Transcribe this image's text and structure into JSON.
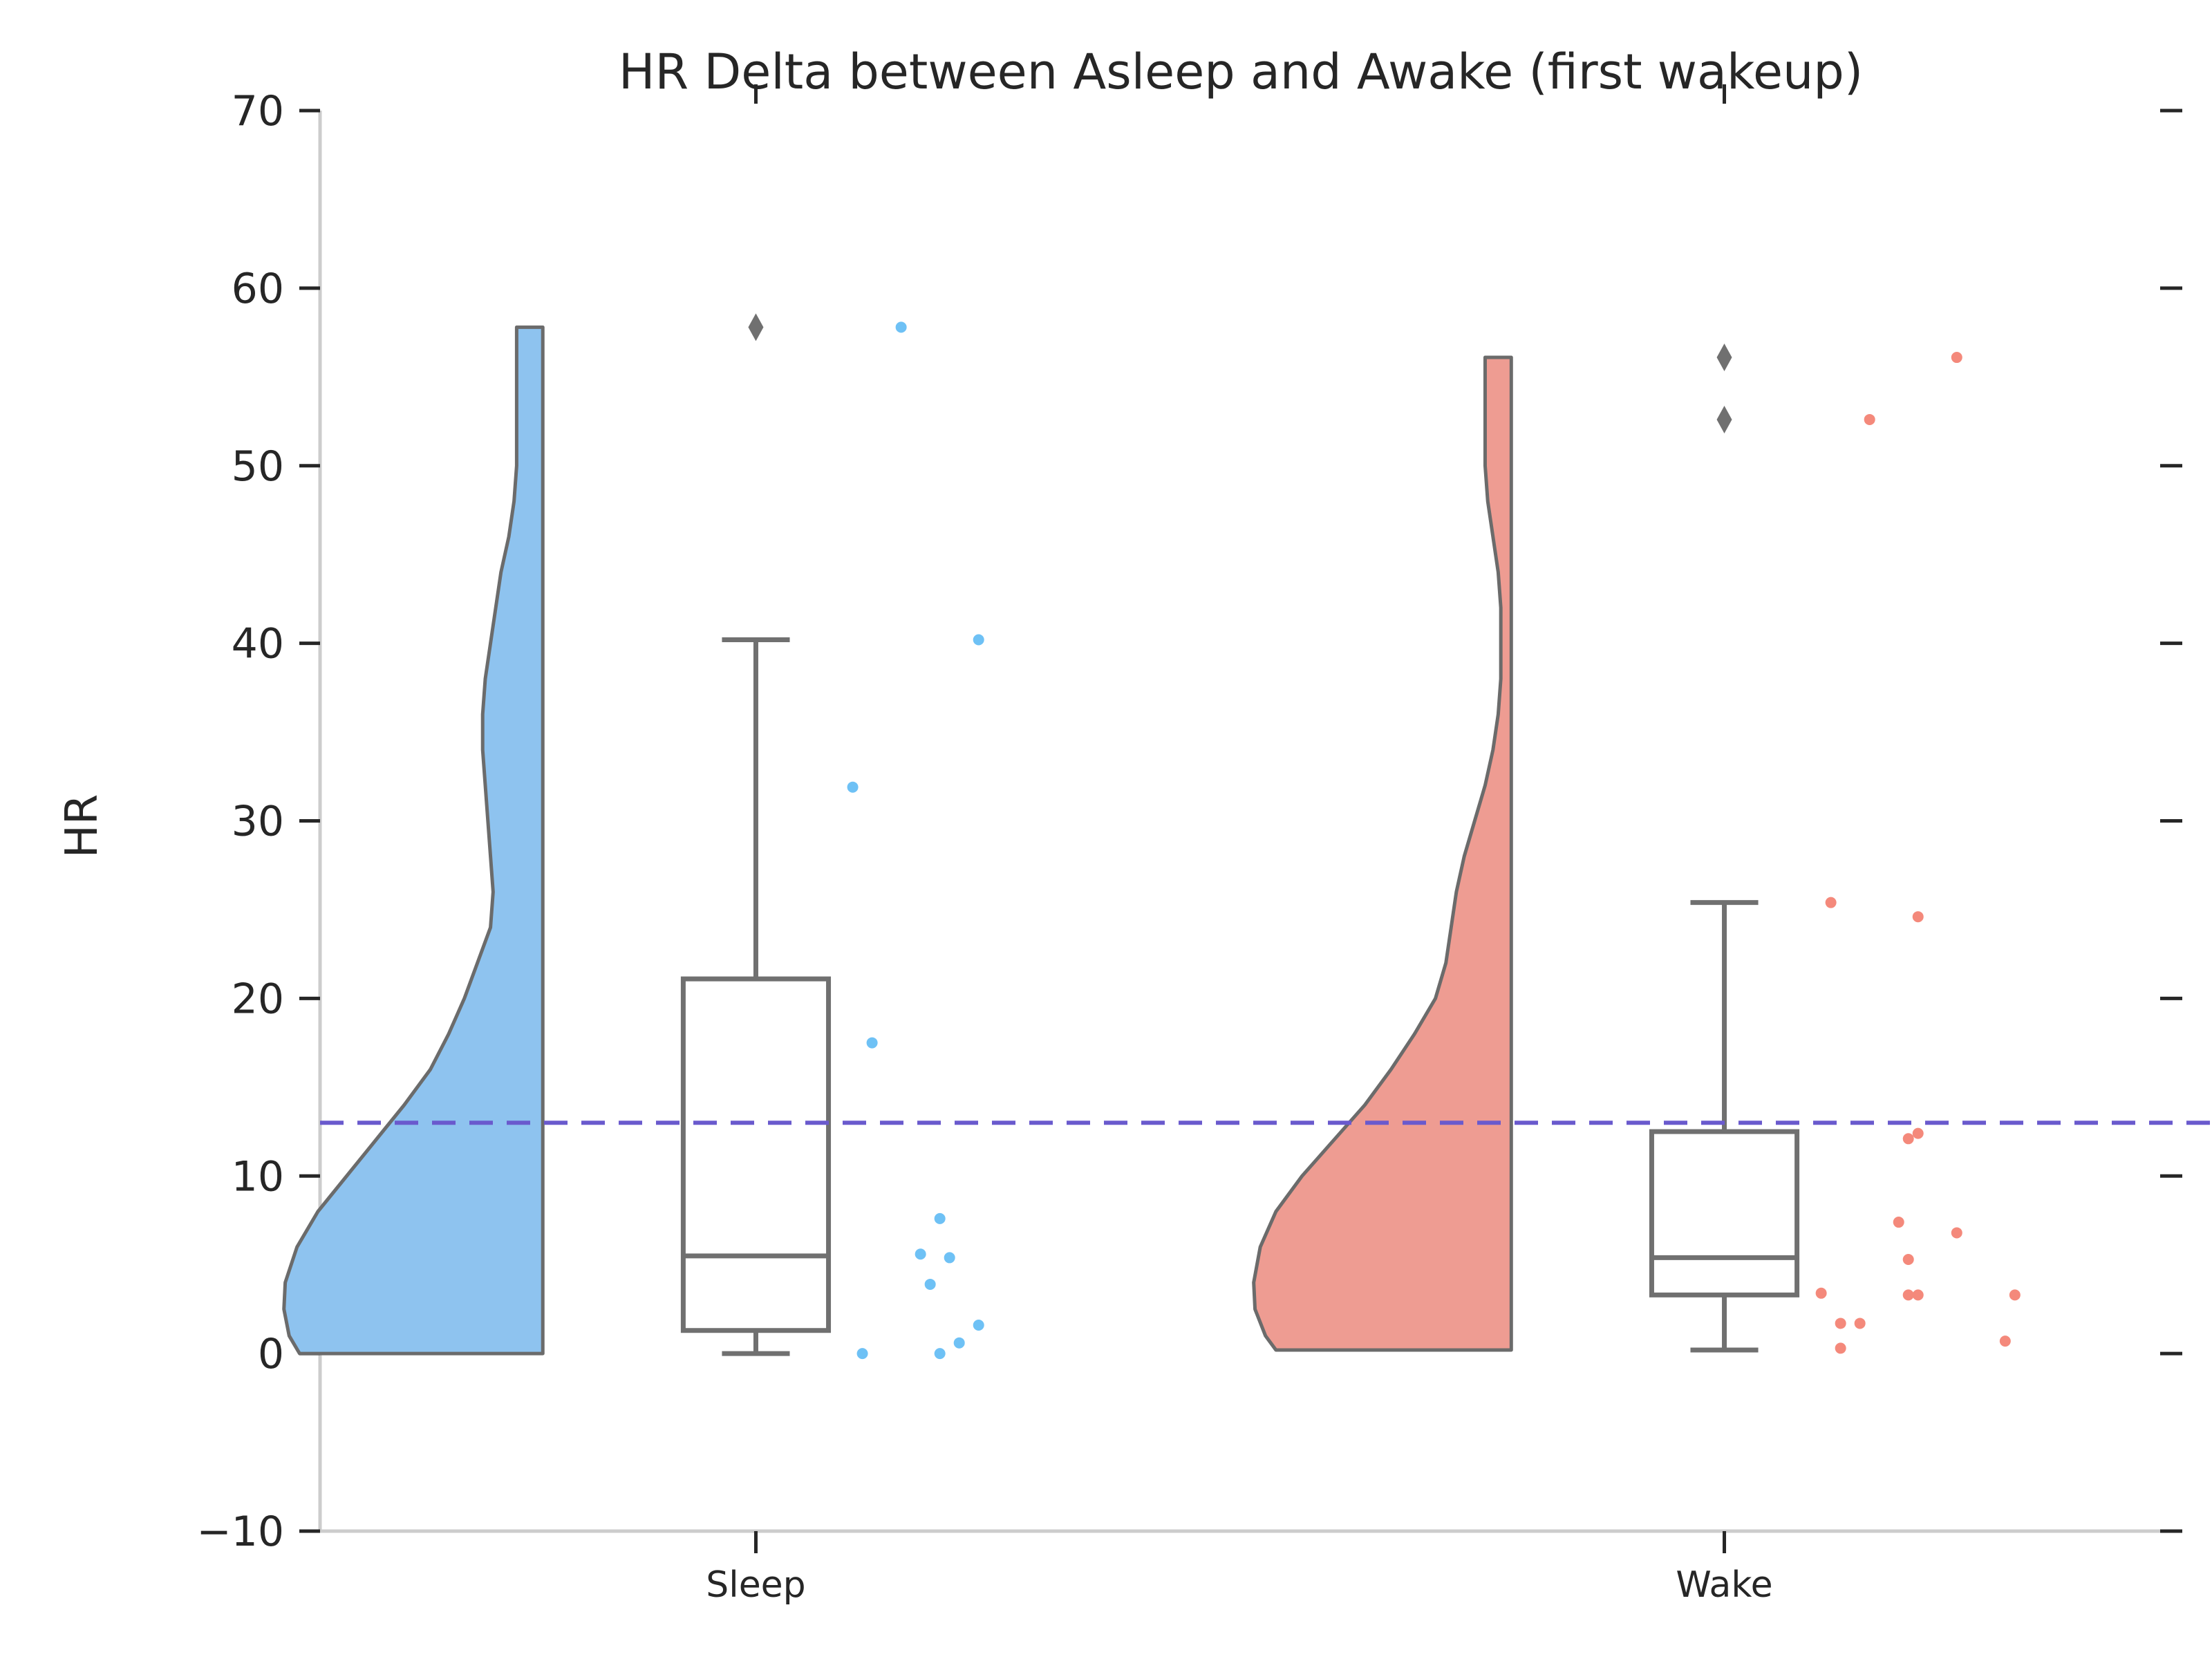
{
  "chart_data": {
    "type": "raincloud",
    "title": "HR Delta between Asleep and Awake (first wakeup)",
    "xlabel": "",
    "ylabel": "HR",
    "ylim": [
      -10,
      70
    ],
    "yticks": [
      -10,
      0,
      10,
      20,
      30,
      40,
      50,
      60,
      70
    ],
    "categories": [
      "Sleep",
      "Wake"
    ],
    "reference_line": {
      "y": 13,
      "color": "#6a5acd",
      "style": "dashed"
    },
    "grid": false,
    "groups": [
      {
        "category": "Sleep",
        "color": "#8ec3ef",
        "point_color": "#6ec1f5",
        "box": {
          "q1": 1.3,
          "median": 5.5,
          "q3": 21.1,
          "whisker_low": 0,
          "whisker_high": 40.2
        },
        "outliers": [
          57.8
        ],
        "violin": {
          "ymin": 0,
          "ymax": 57.8,
          "profile": [
            [
              0,
              0.93
            ],
            [
              1,
              0.97
            ],
            [
              2.5,
              0.99
            ],
            [
              4,
              0.985
            ],
            [
              6,
              0.94
            ],
            [
              8,
              0.86
            ],
            [
              10,
              0.75
            ],
            [
              12,
              0.64
            ],
            [
              14,
              0.53
            ],
            [
              16,
              0.43
            ],
            [
              18,
              0.36
            ],
            [
              20,
              0.3
            ],
            [
              22,
              0.25
            ],
            [
              24,
              0.2
            ],
            [
              26,
              0.19
            ],
            [
              28,
              0.2
            ],
            [
              30,
              0.21
            ],
            [
              32,
              0.22
            ],
            [
              34,
              0.23
            ],
            [
              36,
              0.23
            ],
            [
              38,
              0.22
            ],
            [
              40,
              0.2
            ],
            [
              42,
              0.18
            ],
            [
              44,
              0.16
            ],
            [
              46,
              0.13
            ],
            [
              48,
              0.11
            ],
            [
              50,
              0.1
            ],
            [
              52,
              0.1
            ],
            [
              54,
              0.1
            ],
            [
              56,
              0.1
            ],
            [
              57.8,
              0.1
            ]
          ]
        },
        "points": [
          [
            0.15,
            57.8
          ],
          [
            0.23,
            40.2
          ],
          [
            0.1,
            31.9
          ],
          [
            0.12,
            17.5
          ],
          [
            0.19,
            7.6
          ],
          [
            0.17,
            5.6
          ],
          [
            0.2,
            5.4
          ],
          [
            0.18,
            3.9
          ],
          [
            0.23,
            1.6
          ],
          [
            0.21,
            0.6
          ],
          [
            0.11,
            0
          ],
          [
            0.19,
            0
          ]
        ]
      },
      {
        "category": "Wake",
        "color": "#ee9c92",
        "point_color": "#f4897b",
        "box": {
          "q1": 3.3,
          "median": 5.4,
          "q3": 12.5,
          "whisker_low": 0.2,
          "whisker_high": 25.4
        },
        "outliers": [
          56.1,
          52.6
        ],
        "violin": {
          "ymin": 0.2,
          "ymax": 56.1,
          "profile": [
            [
              0.2,
              0.9
            ],
            [
              1,
              0.94
            ],
            [
              2.5,
              0.98
            ],
            [
              4,
              0.985
            ],
            [
              6,
              0.96
            ],
            [
              8,
              0.9
            ],
            [
              10,
              0.8
            ],
            [
              12,
              0.68
            ],
            [
              14,
              0.56
            ],
            [
              16,
              0.46
            ],
            [
              18,
              0.37
            ],
            [
              20,
              0.29
            ],
            [
              22,
              0.25
            ],
            [
              24,
              0.23
            ],
            [
              26,
              0.21
            ],
            [
              28,
              0.18
            ],
            [
              30,
              0.14
            ],
            [
              32,
              0.1
            ],
            [
              34,
              0.07
            ],
            [
              36,
              0.05
            ],
            [
              38,
              0.04
            ],
            [
              40,
              0.04
            ],
            [
              42,
              0.04
            ],
            [
              44,
              0.05
            ],
            [
              46,
              0.07
            ],
            [
              48,
              0.09
            ],
            [
              50,
              0.1
            ],
            [
              52,
              0.1
            ],
            [
              54,
              0.1
            ],
            [
              56.1,
              0.1
            ]
          ]
        },
        "points": [
          [
            0.24,
            56.1
          ],
          [
            0.15,
            52.6
          ],
          [
            0.11,
            25.4
          ],
          [
            0.2,
            24.6
          ],
          [
            0.2,
            12.4
          ],
          [
            0.19,
            12.1
          ],
          [
            0.18,
            7.4
          ],
          [
            0.24,
            6.8
          ],
          [
            0.19,
            5.3
          ],
          [
            0.1,
            3.4
          ],
          [
            0.19,
            3.3
          ],
          [
            0.2,
            3.3
          ],
          [
            0.3,
            3.3
          ],
          [
            0.12,
            1.7
          ],
          [
            0.14,
            1.7
          ],
          [
            0.29,
            0.7
          ],
          [
            0.12,
            0.3
          ]
        ]
      }
    ]
  }
}
